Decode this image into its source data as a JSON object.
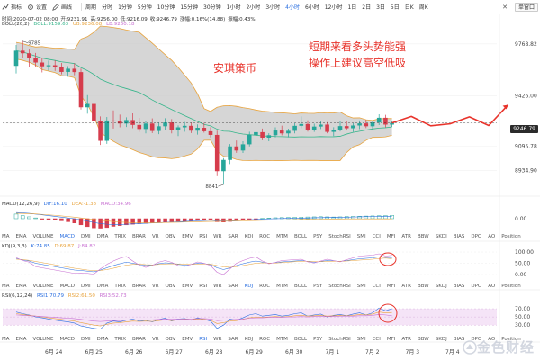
{
  "toolbar": {
    "indicator_label": "指标",
    "settings_label": "设置",
    "draw_label": "画线",
    "periods": [
      "周期",
      "分时",
      "1分钟",
      "5分钟",
      "10分钟",
      "15分钟",
      "30分钟",
      "1小时",
      "2小时",
      "3小时",
      "4小时",
      "6小时",
      "12小时",
      "1日",
      "2日",
      "3日",
      "5日",
      "日K",
      "周K"
    ],
    "active_period": "4小时",
    "close_glyph": "✕",
    "layout_label": "单窗口"
  },
  "info": {
    "line1": [
      "时间:2020-07-02 08:00",
      "开:9231.91",
      "高:9256.00",
      "低:9216.09",
      "收:9246.79",
      "涨幅:0.16%(14.88)",
      "振幅:0.43%"
    ],
    "boll_label": "BOLL(20,2)",
    "boll_values": [
      "BOLL:9159.63",
      "UB:9236.08",
      "LB:9260.18"
    ]
  },
  "annotations": {
    "brand": "安琪策币",
    "view_line1": "短期来看多头势能强",
    "view_line2": "操作上建议高空低吸"
  },
  "price_axis": {
    "labels": [
      "9768.82",
      "9426.00",
      "9246.79",
      "9095.78",
      "8934.90"
    ],
    "current_price": "9246.79",
    "high_marker": "9785",
    "low_marker": "8841"
  },
  "macd": {
    "label": "MACD(12,26,9)",
    "dif": "DIF:16.10",
    "dea": "DEA:-1.38",
    "macd": "MACD:34.96",
    "axis": [
      "0.00"
    ]
  },
  "tabs_row1": [
    "MA",
    "EMA",
    "VOLUME",
    "MACD",
    "DMI",
    "DMA",
    "TRIX",
    "BRAR",
    "VR",
    "OBV",
    "EMV",
    "RSI",
    "WR",
    "SAR",
    "KDJ",
    "ROC",
    "MTM",
    "BOLL",
    "PSY",
    "StochRSI",
    "SMI",
    "CCI",
    "MFI",
    "ATR",
    "BBW",
    "SKDJ",
    "BIAS",
    "DPO",
    "AO",
    "Position"
  ],
  "tabs_row1_active": "MACD",
  "kdj": {
    "label": "KDJ(9,3,3)",
    "k": "K:74.85",
    "d": "D:69.87",
    "j": "J:84.82",
    "axis": [
      "100.00",
      "50.00",
      "0.00"
    ]
  },
  "tabs_row2": [
    "MA",
    "EMA",
    "VOLUME",
    "MACD",
    "DMI",
    "DMA",
    "TRIX",
    "BRAR",
    "VR",
    "OBV",
    "EMV",
    "RSI",
    "WR",
    "SAR",
    "KDJ",
    "ROC",
    "MTM",
    "BOLL",
    "PSY",
    "StochRSI",
    "SMI",
    "CCI",
    "MFI",
    "ATR",
    "BBW",
    "SKDJ",
    "BIAS",
    "DPO",
    "AO",
    "Position"
  ],
  "tabs_row2_active": "KDJ",
  "rsi": {
    "label": "RSI(6,12,24)",
    "rsi1": "RSI1:70.79",
    "rsi2": "RSI2:61.50",
    "rsi3": "RSI3:52.73",
    "axis": [
      "70.00",
      "50.00",
      "30.00"
    ]
  },
  "tabs_row3": [
    "MA",
    "EMA",
    "VOLUME",
    "MACD",
    "DMI",
    "DMA",
    "TRIX",
    "BRAR",
    "VR",
    "OBV",
    "EMV",
    "RSI",
    "WR",
    "SAR",
    "KDJ",
    "ROC",
    "MTM",
    "BOLL",
    "PSY",
    "StochRSI",
    "SMI",
    "CCI",
    "MFI",
    "ATR",
    "BBW",
    "SKDJ",
    "BIAS",
    "DPO",
    "AO",
    "Position"
  ],
  "tabs_row3_active": "RSI",
  "date_axis": [
    "6月 24",
    "6月 25",
    "6月 26",
    "6月 27",
    "6月 28",
    "6月 29",
    "6月 30",
    "7月 1",
    "7月 2",
    "7月 3",
    "7月 4"
  ],
  "watermark": "金色财经",
  "colors": {
    "up": "#26a69a",
    "down": "#d63c4c",
    "annotation": "#e8332b",
    "boll_fill": "#c8c8c8",
    "boll_upper": "#e8a33c",
    "boll_mid": "#35b58a",
    "accent": "#2b6fe0"
  },
  "candles": [
    [
      9623,
      9761,
      9573,
      9723
    ],
    [
      9723,
      9786,
      9677,
      9706
    ],
    [
      9706,
      9730,
      9617,
      9676
    ],
    [
      9676,
      9708,
      9614,
      9645
    ],
    [
      9645,
      9677,
      9580,
      9620
    ],
    [
      9620,
      9658,
      9592,
      9627
    ],
    [
      9627,
      9660,
      9590,
      9615
    ],
    [
      9615,
      9642,
      9567,
      9583
    ],
    [
      9583,
      9621,
      9552,
      9604
    ],
    [
      9604,
      9640,
      9561,
      9582
    ],
    [
      9582,
      9605,
      9335,
      9350
    ],
    [
      9350,
      9430,
      9308,
      9372
    ],
    [
      9372,
      9397,
      9239,
      9260
    ],
    [
      9260,
      9290,
      9102,
      9129
    ],
    [
      9129,
      9286,
      9109,
      9263
    ],
    [
      9263,
      9329,
      9210,
      9258
    ],
    [
      9258,
      9302,
      9218,
      9243
    ],
    [
      9243,
      9284,
      9220,
      9266
    ],
    [
      9266,
      9310,
      9212,
      9234
    ],
    [
      9234,
      9280,
      9188,
      9207
    ],
    [
      9207,
      9261,
      9178,
      9243
    ],
    [
      9243,
      9277,
      9180,
      9194
    ],
    [
      9194,
      9249,
      9173,
      9225
    ],
    [
      9225,
      9278,
      9203,
      9250
    ],
    [
      9250,
      9272,
      9178,
      9199
    ],
    [
      9199,
      9231,
      9160,
      9218
    ],
    [
      9218,
      9253,
      9189,
      9228
    ],
    [
      9228,
      9249,
      9180,
      9196
    ],
    [
      9196,
      9237,
      9170,
      9215
    ],
    [
      9215,
      9247,
      9183,
      9192
    ],
    [
      9192,
      9219,
      9151,
      9168
    ],
    [
      9168,
      9196,
      8896,
      8929
    ],
    [
      8929,
      9015,
      8841,
      9003
    ],
    [
      9003,
      9108,
      8976,
      9092
    ],
    [
      9092,
      9131,
      9050,
      9065
    ],
    [
      9065,
      9126,
      9049,
      9106
    ],
    [
      9106,
      9189,
      9092,
      9168
    ],
    [
      9168,
      9204,
      9136,
      9186
    ],
    [
      9186,
      9210,
      9133,
      9150
    ],
    [
      9150,
      9179,
      9126,
      9166
    ],
    [
      9166,
      9218,
      9152,
      9197
    ],
    [
      9197,
      9229,
      9165,
      9178
    ],
    [
      9178,
      9209,
      9152,
      9195
    ],
    [
      9195,
      9245,
      9178,
      9228
    ],
    [
      9228,
      9290,
      9212,
      9240
    ],
    [
      9240,
      9264,
      9190,
      9203
    ],
    [
      9203,
      9242,
      9188,
      9223
    ],
    [
      9223,
      9258,
      9207,
      9236
    ],
    [
      9236,
      9252,
      9179,
      9188
    ],
    [
      9188,
      9219,
      9160,
      9203
    ],
    [
      9203,
      9260,
      9191,
      9226
    ],
    [
      9226,
      9258,
      9197,
      9212
    ],
    [
      9212,
      9245,
      9188,
      9230
    ],
    [
      9230,
      9263,
      9206,
      9244
    ],
    [
      9244,
      9268,
      9213,
      9225
    ],
    [
      9225,
      9261,
      9205,
      9250
    ],
    [
      9250,
      9304,
      9233,
      9281
    ],
    [
      9281,
      9300,
      9218,
      9236
    ],
    [
      9236,
      9258,
      9221,
      9247
    ]
  ],
  "forecast": [
    9247,
    9290,
    9228,
    9241,
    9287,
    9230,
    9366
  ],
  "macd_hist": [
    30,
    20,
    12,
    5,
    -2,
    -6,
    -8,
    -14,
    -20,
    -28,
    -40,
    -52,
    -60,
    -62,
    -58,
    -50,
    -45,
    -40,
    -36,
    -32,
    -30,
    -28,
    -25,
    -22,
    -20,
    -18,
    -16,
    -14,
    -12,
    -10,
    -8,
    -20,
    -22,
    -18,
    -12,
    -8,
    -4,
    -1,
    2,
    4,
    6,
    7,
    8,
    9,
    10,
    11,
    12,
    13,
    12,
    11,
    12,
    14,
    15,
    16,
    17,
    18,
    19,
    20,
    22
  ],
  "macd_dif": [
    40,
    38,
    35,
    30,
    25,
    20,
    15,
    10,
    5,
    0,
    -8,
    -16,
    -25,
    -32,
    -36,
    -38,
    -38,
    -36,
    -34,
    -32,
    -30,
    -28,
    -26,
    -24,
    -22,
    -20,
    -18,
    -16,
    -14,
    -12,
    -10,
    -14,
    -16,
    -15,
    -12,
    -10,
    -7,
    -5,
    -3,
    -1,
    0,
    1,
    2,
    3,
    4,
    5,
    6,
    7,
    8,
    8,
    9,
    10,
    11,
    12,
    13,
    14,
    15,
    16,
    16
  ],
  "macd_dea": [
    35,
    34,
    33,
    31,
    28,
    25,
    22,
    18,
    14,
    10,
    5,
    0,
    -5,
    -10,
    -15,
    -19,
    -22,
    -24,
    -26,
    -27,
    -27,
    -27,
    -26,
    -25,
    -24,
    -23,
    -22,
    -21,
    -20,
    -19,
    -18,
    -17,
    -17,
    -16,
    -15,
    -14,
    -13,
    -12,
    -11,
    -10,
    -9,
    -8,
    -7,
    -6,
    -5,
    -4,
    -3,
    -3,
    -2,
    -2,
    -2,
    -1,
    -1,
    -1,
    -1,
    -1,
    -1,
    -1,
    -1
  ],
  "kdj_k": [
    70,
    65,
    60,
    50,
    45,
    40,
    35,
    30,
    25,
    20,
    18,
    15,
    12,
    20,
    30,
    40,
    48,
    55,
    50,
    45,
    40,
    42,
    48,
    52,
    50,
    45,
    42,
    45,
    50,
    48,
    44,
    30,
    22,
    30,
    40,
    48,
    55,
    60,
    55,
    50,
    52,
    56,
    58,
    60,
    62,
    58,
    55,
    58,
    62,
    60,
    58,
    62,
    66,
    70,
    72,
    74,
    78,
    76,
    75
  ],
  "kdj_d": [
    68,
    66,
    63,
    58,
    53,
    48,
    43,
    38,
    33,
    28,
    24,
    20,
    17,
    18,
    22,
    28,
    35,
    42,
    45,
    46,
    44,
    43,
    45,
    47,
    48,
    47,
    45,
    45,
    47,
    47,
    46,
    40,
    34,
    32,
    35,
    40,
    45,
    50,
    52,
    51,
    51,
    53,
    55,
    57,
    59,
    59,
    57,
    57,
    59,
    59,
    59,
    60,
    62,
    64,
    66,
    68,
    71,
    73,
    70
  ],
  "kdj_j": [
    75,
    62,
    55,
    35,
    30,
    25,
    20,
    15,
    10,
    5,
    6,
    5,
    2,
    25,
    45,
    60,
    72,
    80,
    60,
    42,
    32,
    40,
    55,
    62,
    54,
    40,
    36,
    45,
    56,
    50,
    40,
    10,
    0,
    25,
    50,
    62,
    72,
    78,
    60,
    48,
    54,
    62,
    64,
    66,
    68,
    56,
    51,
    60,
    68,
    62,
    56,
    66,
    74,
    82,
    84,
    86,
    92,
    82,
    85
  ],
  "rsi_1": [
    62,
    58,
    55,
    50,
    48,
    45,
    42,
    40,
    38,
    35,
    28,
    25,
    22,
    20,
    35,
    40,
    38,
    42,
    45,
    40,
    42,
    38,
    44,
    47,
    40,
    45,
    46,
    42,
    48,
    44,
    40,
    22,
    30,
    45,
    42,
    48,
    55,
    58,
    52,
    54,
    56,
    52,
    54,
    58,
    60,
    52,
    55,
    57,
    50,
    54,
    56,
    53,
    57,
    60,
    55,
    60,
    72,
    65,
    70
  ],
  "rsi_2": [
    58,
    56,
    54,
    52,
    50,
    48,
    46,
    44,
    42,
    40,
    36,
    33,
    30,
    28,
    32,
    35,
    36,
    38,
    40,
    39,
    40,
    39,
    41,
    43,
    41,
    43,
    44,
    43,
    45,
    44,
    42,
    34,
    36,
    40,
    41,
    44,
    48,
    50,
    49,
    50,
    51,
    50,
    51,
    53,
    54,
    52,
    53,
    54,
    52,
    53,
    54,
    53,
    54,
    56,
    55,
    57,
    62,
    60,
    61
  ],
  "rsi_3": [
    55,
    54,
    53,
    52,
    51,
    50,
    49,
    48,
    47,
    46,
    44,
    42,
    40,
    39,
    40,
    41,
    41,
    42,
    43,
    43,
    43,
    43,
    44,
    45,
    44,
    45,
    45,
    45,
    46,
    46,
    45,
    41,
    42,
    43,
    44,
    45,
    47,
    48,
    48,
    49,
    49,
    49,
    50,
    50,
    51,
    50,
    51,
    51,
    51,
    51,
    52,
    52,
    52,
    53,
    53,
    54,
    56,
    55,
    53
  ]
}
